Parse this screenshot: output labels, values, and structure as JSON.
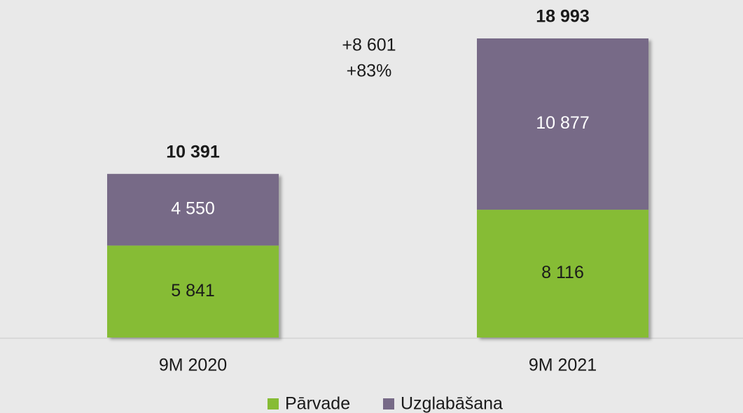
{
  "chart_data": {
    "type": "stacked_bar",
    "categories": [
      "9M 2020",
      "9M 2021"
    ],
    "series": [
      {
        "name": "Pārvade",
        "color": "#86bc35",
        "values": [
          5841,
          8116
        ],
        "value_labels": [
          "5 841",
          "8 116"
        ],
        "label_color": "#1a1a1a"
      },
      {
        "name": "Uzglabāšana",
        "color": "#776a87",
        "values": [
          4550,
          10877
        ],
        "value_labels": [
          "4 550",
          "10 877"
        ],
        "label_color": "#ffffff"
      }
    ],
    "totals": [
      10391,
      18993
    ],
    "total_labels": [
      "10 391",
      "18 993"
    ],
    "annotations": [
      "+8 601",
      "+83%"
    ]
  }
}
